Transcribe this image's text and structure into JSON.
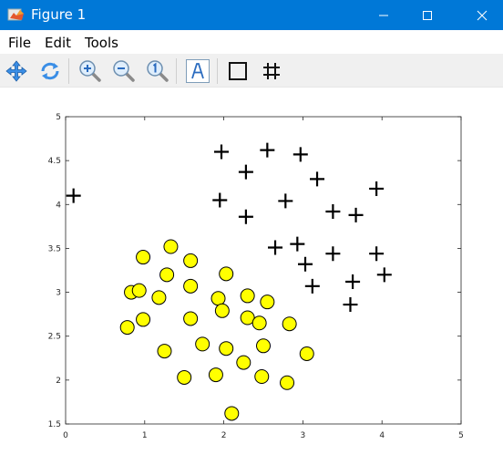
{
  "window": {
    "title": "Figure 1",
    "titlebar_color": "#0078d7"
  },
  "menu": {
    "file": "File",
    "edit": "Edit",
    "tools": "Tools"
  },
  "toolbar": {
    "icons": [
      "pan-icon",
      "rotate-icon",
      "zoom-in-icon",
      "zoom-out-icon",
      "zoom-reset-icon",
      "text-insert-icon",
      "axes-box-icon",
      "grid-icon"
    ]
  },
  "chart_data": {
    "type": "scatter",
    "title": "",
    "xlabel": "",
    "ylabel": "",
    "xlim": [
      0,
      5
    ],
    "ylim": [
      1.5,
      5
    ],
    "xticks": [
      "0",
      "1",
      "2",
      "3",
      "4",
      "5"
    ],
    "yticks": [
      "1.5",
      "2",
      "2.5",
      "3",
      "3.5",
      "4",
      "4.5",
      "5"
    ],
    "grid": false,
    "series": [
      {
        "marker": "plus",
        "color": "#000000",
        "points": [
          [
            0.1,
            4.1
          ],
          [
            1.97,
            4.6
          ],
          [
            2.55,
            4.62
          ],
          [
            2.97,
            4.57
          ],
          [
            2.28,
            4.37
          ],
          [
            3.18,
            4.29
          ],
          [
            3.93,
            4.18
          ],
          [
            1.95,
            4.05
          ],
          [
            2.78,
            4.04
          ],
          [
            3.38,
            3.92
          ],
          [
            3.67,
            3.88
          ],
          [
            2.28,
            3.86
          ],
          [
            2.65,
            3.51
          ],
          [
            2.93,
            3.55
          ],
          [
            3.38,
            3.44
          ],
          [
            3.93,
            3.44
          ],
          [
            3.03,
            3.32
          ],
          [
            4.03,
            3.2
          ],
          [
            3.63,
            3.12
          ],
          [
            3.12,
            3.07
          ],
          [
            3.6,
            2.86
          ]
        ]
      },
      {
        "marker": "circle",
        "color": "#ffff00",
        "edge": "#000000",
        "points": [
          [
            1.33,
            3.52
          ],
          [
            0.98,
            3.4
          ],
          [
            1.58,
            3.36
          ],
          [
            1.28,
            3.2
          ],
          [
            2.03,
            3.21
          ],
          [
            1.58,
            3.07
          ],
          [
            0.83,
            3.0
          ],
          [
            0.93,
            3.02
          ],
          [
            1.18,
            2.94
          ],
          [
            2.3,
            2.96
          ],
          [
            1.93,
            2.93
          ],
          [
            2.55,
            2.89
          ],
          [
            1.98,
            2.79
          ],
          [
            2.3,
            2.71
          ],
          [
            1.58,
            2.7
          ],
          [
            0.98,
            2.69
          ],
          [
            2.45,
            2.65
          ],
          [
            2.83,
            2.64
          ],
          [
            0.78,
            2.6
          ],
          [
            1.73,
            2.41
          ],
          [
            2.5,
            2.39
          ],
          [
            2.03,
            2.36
          ],
          [
            1.25,
            2.33
          ],
          [
            3.05,
            2.3
          ],
          [
            2.25,
            2.2
          ],
          [
            1.9,
            2.06
          ],
          [
            1.5,
            2.03
          ],
          [
            2.48,
            2.04
          ],
          [
            2.8,
            1.97
          ],
          [
            2.1,
            1.62
          ]
        ]
      }
    ]
  }
}
